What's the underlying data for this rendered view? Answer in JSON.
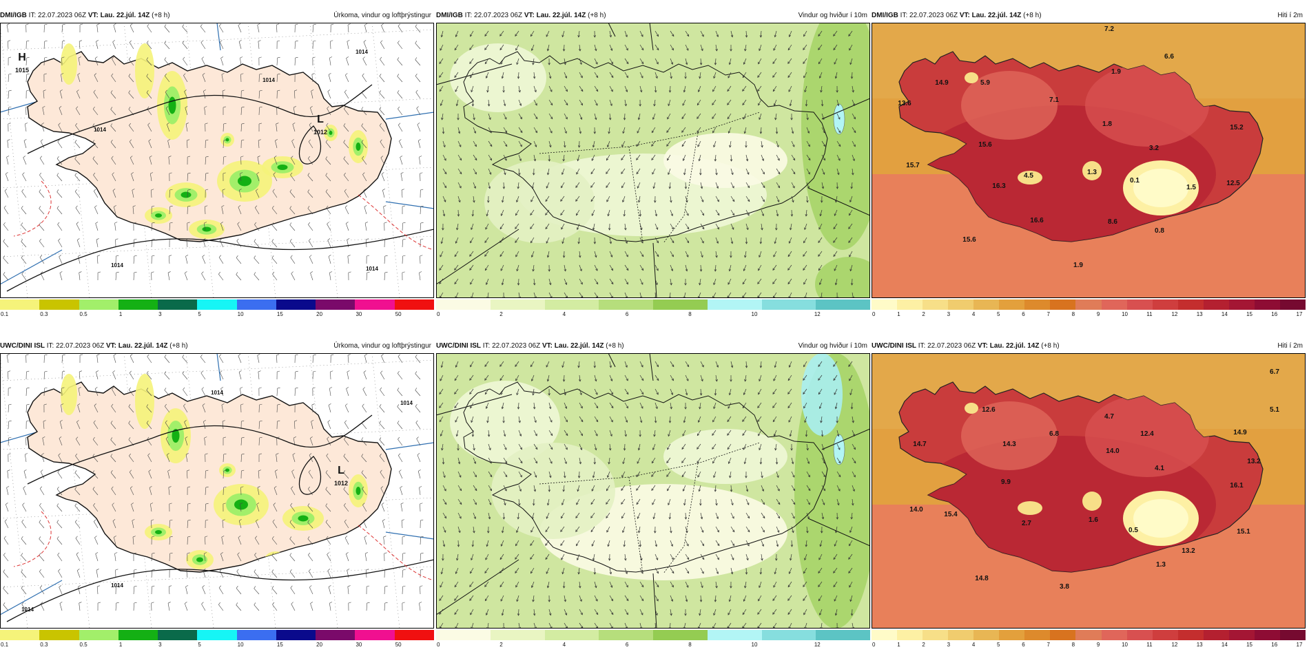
{
  "panels": [
    {
      "model": "DMI/IGB",
      "it_label": "IT:",
      "it_value": "22.07.2023 06Z",
      "vt_label": "VT:",
      "vt_value": "Lau. 22.júl. 14Z",
      "offset": "(+8 h)",
      "right_title": "Úrkoma, vindur og loftþrýstingur",
      "kind": "precip",
      "colorbar": {
        "colors": [
          "#f5f37a",
          "#c9c400",
          "#a2ef6a",
          "#14b014",
          "#0a6a4a",
          "#16f5f5",
          "#3b6ef0",
          "#0a0a8c",
          "#7a0a6a",
          "#f01090",
          "#f01010"
        ],
        "ticks": [
          "0.1",
          "0.3",
          "0.5",
          "1",
          "3",
          "5",
          "10",
          "15",
          "20",
          "30",
          "50"
        ]
      },
      "labels": [
        {
          "text": "H",
          "kind": "big"
        },
        {
          "text": "1015",
          "kind": "small"
        },
        {
          "text": "L",
          "kind": "big"
        },
        {
          "text": "1012",
          "kind": "small"
        },
        {
          "text": "1014",
          "kind": "iso"
        },
        {
          "text": "1014",
          "kind": "iso"
        },
        {
          "text": "1014",
          "kind": "iso"
        },
        {
          "text": "1014",
          "kind": "iso"
        },
        {
          "text": "1014",
          "kind": "iso"
        }
      ]
    },
    {
      "model": "DMI/IGB",
      "it_label": "IT:",
      "it_value": "22.07.2023 06Z",
      "vt_label": "VT:",
      "vt_value": "Lau. 22.júl. 14Z",
      "offset": "(+8 h)",
      "right_title": "Vindur og hviður í 10m",
      "kind": "wind",
      "colorbar": {
        "colors": [
          "#fbfbe4",
          "#e9f5c2",
          "#d3eca2",
          "#b6de7c",
          "#94cc52",
          "#b2f5f5",
          "#86dede",
          "#5cc4c4"
        ],
        "ticks": [
          "0",
          "2",
          "4",
          "6",
          "8",
          "10",
          "12"
        ]
      },
      "labels": []
    },
    {
      "model": "DMI/IGB",
      "it_label": "IT:",
      "it_value": "22.07.2023 06Z",
      "vt_label": "VT:",
      "vt_value": "Lau. 22.júl. 14Z",
      "offset": "(+8 h)",
      "right_title": "Hiti í 2m",
      "kind": "temp",
      "colorbar": {
        "colors": [
          "#fffbc8",
          "#fdf0a4",
          "#f7df88",
          "#f0cc6e",
          "#e8b654",
          "#e3a03c",
          "#dd8a2c",
          "#d8731f",
          "#e07c58",
          "#e0665a",
          "#d85050",
          "#cf3e3e",
          "#c42e2e",
          "#b42030",
          "#a41634",
          "#8e0c34",
          "#760a30"
        ],
        "ticks": [
          "0",
          "1",
          "2",
          "3",
          "4",
          "5",
          "6",
          "7",
          "8",
          "9",
          "10",
          "11",
          "12",
          "13",
          "14",
          "15",
          "16",
          "17"
        ]
      },
      "labels": [
        {
          "text": "7.2"
        },
        {
          "text": "6.6"
        },
        {
          "text": "14.9"
        },
        {
          "text": "5.9"
        },
        {
          "text": "1.9"
        },
        {
          "text": "7.1"
        },
        {
          "text": "13.6"
        },
        {
          "text": "1.8"
        },
        {
          "text": "15.2"
        },
        {
          "text": "15.6"
        },
        {
          "text": "3.2"
        },
        {
          "text": "15.7"
        },
        {
          "text": "4.5"
        },
        {
          "text": "1.3"
        },
        {
          "text": "0.1"
        },
        {
          "text": "12.5"
        },
        {
          "text": "16.3"
        },
        {
          "text": "1.5"
        },
        {
          "text": "16.6"
        },
        {
          "text": "8.6"
        },
        {
          "text": "0.8"
        },
        {
          "text": "15.6"
        },
        {
          "text": "1.9"
        }
      ]
    },
    {
      "model": "UWC/DINI ISL",
      "it_label": "IT:",
      "it_value": "22.07.2023 06Z",
      "vt_label": "VT:",
      "vt_value": "Lau. 22.júl. 14Z",
      "offset": "(+8 h)",
      "right_title": "Úrkoma, vindur og loftþrýstingur",
      "kind": "precip",
      "colorbar": {
        "colors": [
          "#f5f37a",
          "#c9c400",
          "#a2ef6a",
          "#14b014",
          "#0a6a4a",
          "#16f5f5",
          "#3b6ef0",
          "#0a0a8c",
          "#7a0a6a",
          "#f01090",
          "#f01010"
        ],
        "ticks": [
          "0.1",
          "0.3",
          "0.5",
          "1",
          "3",
          "5",
          "10",
          "15",
          "20",
          "30",
          "50"
        ]
      },
      "labels": [
        {
          "text": "L",
          "kind": "big"
        },
        {
          "text": "1012",
          "kind": "small"
        },
        {
          "text": "1014",
          "kind": "iso"
        },
        {
          "text": "1014",
          "kind": "iso"
        },
        {
          "text": "1014",
          "kind": "iso"
        },
        {
          "text": "1014",
          "kind": "iso"
        }
      ]
    },
    {
      "model": "UWC/DINI ISL",
      "it_label": "IT:",
      "it_value": "22.07.2023 06Z",
      "vt_label": "VT:",
      "vt_value": "Lau. 22.júl. 14Z",
      "offset": "(+8 h)",
      "right_title": "Vindur og hviður í 10m",
      "kind": "wind",
      "colorbar": {
        "colors": [
          "#fbfbe4",
          "#e9f5c2",
          "#d3eca2",
          "#b6de7c",
          "#94cc52",
          "#b2f5f5",
          "#86dede",
          "#5cc4c4"
        ],
        "ticks": [
          "0",
          "2",
          "4",
          "6",
          "8",
          "10",
          "12"
        ]
      },
      "labels": []
    },
    {
      "model": "UWC/DINI ISL",
      "it_label": "IT:",
      "it_value": "22.07.2023 06Z",
      "vt_label": "VT:",
      "vt_value": "Lau. 22.júl. 14Z",
      "offset": "(+8 h)",
      "right_title": "Hiti í 2m",
      "kind": "temp",
      "colorbar": {
        "colors": [
          "#fffbc8",
          "#fdf0a4",
          "#f7df88",
          "#f0cc6e",
          "#e8b654",
          "#e3a03c",
          "#dd8a2c",
          "#d8731f",
          "#e07c58",
          "#e0665a",
          "#d85050",
          "#cf3e3e",
          "#c42e2e",
          "#b42030",
          "#a41634",
          "#8e0c34",
          "#760a30"
        ],
        "ticks": [
          "0",
          "1",
          "2",
          "3",
          "4",
          "5",
          "6",
          "7",
          "8",
          "9",
          "10",
          "11",
          "12",
          "13",
          "14",
          "15",
          "16",
          "17"
        ]
      },
      "labels": [
        {
          "text": "6.7"
        },
        {
          "text": "5.1"
        },
        {
          "text": "12.6"
        },
        {
          "text": "4.7"
        },
        {
          "text": "6.8"
        },
        {
          "text": "14.9"
        },
        {
          "text": "14.7"
        },
        {
          "text": "14.3"
        },
        {
          "text": "12.4"
        },
        {
          "text": "14.0"
        },
        {
          "text": "13.2"
        },
        {
          "text": "9.9"
        },
        {
          "text": "4.1"
        },
        {
          "text": "16.1"
        },
        {
          "text": "14.0"
        },
        {
          "text": "15.4"
        },
        {
          "text": "2.7"
        },
        {
          "text": "1.6"
        },
        {
          "text": "0.5"
        },
        {
          "text": "15.1"
        },
        {
          "text": "13.2"
        },
        {
          "text": "1.3"
        },
        {
          "text": "14.8"
        },
        {
          "text": "3.8"
        }
      ]
    }
  ]
}
